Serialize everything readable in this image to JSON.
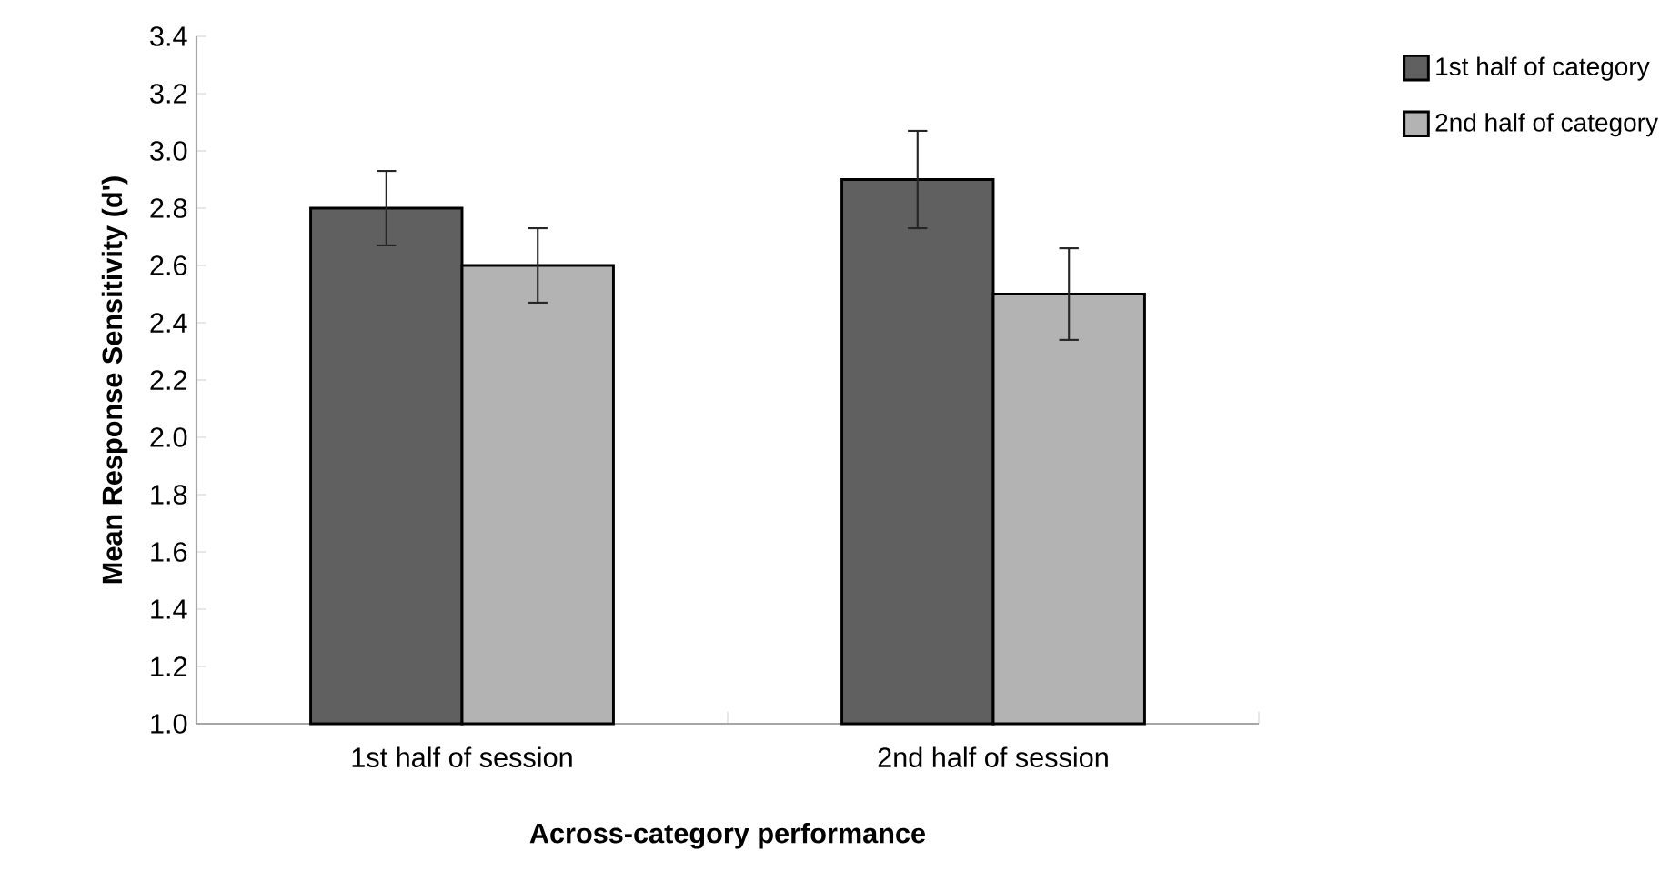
{
  "chart_data": {
    "type": "bar",
    "xlabel": "Across-category performance",
    "ylabel": "Mean Response Sensitivity (d')",
    "categories": [
      "1st half of session",
      "2nd half of session"
    ],
    "series": [
      {
        "name": "1st half of category",
        "color": "#606060",
        "values": [
          2.8,
          2.9
        ],
        "errors": [
          0.13,
          0.17
        ]
      },
      {
        "name": "2nd half of category",
        "color": "#b3b3b3",
        "values": [
          2.6,
          2.5
        ],
        "errors": [
          0.13,
          0.16
        ]
      }
    ],
    "ylim": [
      1.0,
      3.4
    ],
    "yticks": [
      {
        "value": 1.0,
        "label": "1.0"
      },
      {
        "value": 1.2,
        "label": "1.2"
      },
      {
        "value": 1.4,
        "label": "1.4"
      },
      {
        "value": 1.6,
        "label": "1.6"
      },
      {
        "value": 1.8,
        "label": "1.8"
      },
      {
        "value": 2.0,
        "label": "2.0"
      },
      {
        "value": 2.2,
        "label": "2.2"
      },
      {
        "value": 2.4,
        "label": "2.4"
      },
      {
        "value": 2.6,
        "label": "2.6"
      },
      {
        "value": 2.8,
        "label": "2.8"
      },
      {
        "value": 3.0,
        "label": "3.0"
      },
      {
        "value": 3.2,
        "label": "3.2"
      },
      {
        "value": 3.4,
        "label": "3.4"
      }
    ],
    "grid": false,
    "legend": "right"
  }
}
